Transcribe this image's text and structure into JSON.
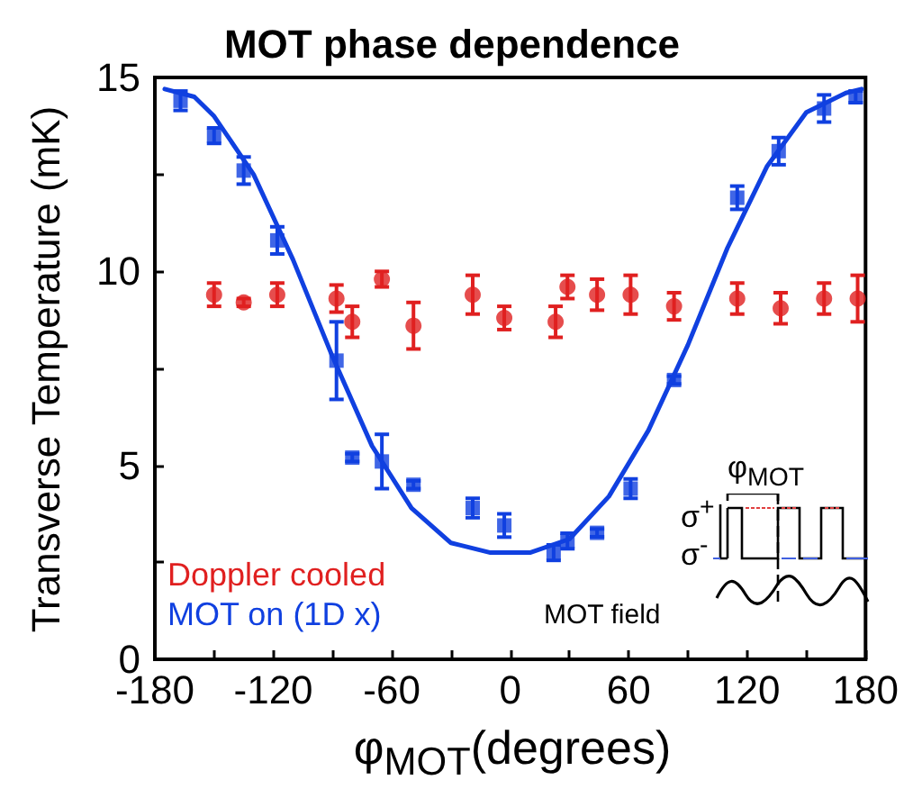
{
  "chart_data": {
    "type": "scatter",
    "title": "MOT phase dependence",
    "xlabel": "φ$_{MOT}$(degrees)",
    "ylabel": "Transverse Temperature (mK)",
    "annotations": [
      "φ$_{MOT}$",
      "σ$^{+}$",
      "σ$^{-}$",
      "MOT field"
    ],
    "xlim": [
      -180,
      180
    ],
    "ylim": [
      0,
      15
    ],
    "xticks": [
      -180,
      {
        "value": -150,
        "label": null
      },
      -120,
      {
        "value": -90,
        "label": null
      },
      -60,
      {
        "value": -30,
        "label": null
      },
      0,
      {
        "value": 30,
        "label": null
      },
      60,
      {
        "value": 90,
        "label": null
      },
      120,
      {
        "value": 150,
        "label": null
      },
      180
    ],
    "yticks": [
      0,
      {
        "value": 2.5,
        "label": null
      },
      5,
      {
        "value": 7.5,
        "label": null
      },
      10,
      {
        "value": 12.5,
        "label": null
      },
      15
    ],
    "grid": false,
    "legend": "bottom left",
    "series": [
      {
        "name": "Doppler cooled",
        "marker": "circle",
        "color": "#e02020",
        "x": [
          -150,
          -135,
          -118,
          -88,
          -80,
          -65,
          -49,
          -19,
          -3,
          23,
          29,
          44,
          61,
          83,
          115,
          137,
          159,
          176
        ],
        "values": [
          9.4,
          9.2,
          9.4,
          9.3,
          8.7,
          9.8,
          8.6,
          9.4,
          8.8,
          8.7,
          9.6,
          9.4,
          9.4,
          9.1,
          9.3,
          9.05,
          9.3,
          9.3
        ],
        "errors": [
          0.3,
          0.1,
          0.3,
          0.35,
          0.4,
          0.2,
          0.6,
          0.5,
          0.3,
          0.4,
          0.3,
          0.4,
          0.5,
          0.35,
          0.4,
          0.4,
          0.4,
          0.6
        ]
      },
      {
        "name": "MOT on (1D x)",
        "marker": "square",
        "color": "#1040e0",
        "x": [
          -167,
          -150,
          -135,
          -118,
          -88,
          -80,
          -65,
          -49,
          -19,
          -3,
          22,
          29,
          44,
          61,
          83,
          115,
          136,
          159,
          175
        ],
        "values": [
          14.4,
          13.5,
          12.6,
          10.8,
          7.7,
          5.2,
          5.1,
          4.5,
          3.9,
          3.45,
          2.75,
          3.05,
          3.26,
          4.4,
          7.2,
          11.9,
          13.1,
          14.2,
          14.5
        ],
        "errors": [
          0.25,
          0.2,
          0.35,
          0.35,
          1.0,
          0.1,
          0.7,
          0.1,
          0.25,
          0.3,
          0.2,
          0.2,
          0.1,
          0.25,
          0.1,
          0.3,
          0.35,
          0.35,
          0.15
        ]
      },
      {
        "type": "line",
        "marker": "none",
        "color": "#1040e0",
        "x": [
          -175,
          -160,
          -150,
          -130,
          -110,
          -90,
          -70,
          -50,
          -30,
          -10,
          10,
          30,
          50,
          70,
          90,
          110,
          130,
          150,
          170,
          178
        ],
        "values": [
          14.7,
          14.5,
          14.0,
          12.5,
          10.3,
          7.8,
          5.5,
          3.9,
          3.0,
          2.75,
          2.75,
          3.1,
          4.2,
          5.9,
          8.1,
          10.6,
          12.7,
          14.1,
          14.6,
          14.7
        ]
      }
    ]
  }
}
